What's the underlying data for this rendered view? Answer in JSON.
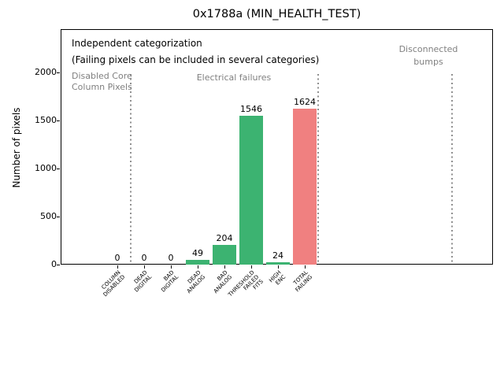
{
  "chart_data": {
    "type": "bar",
    "title": "0x1788a (MIN_HEALTH_TEST)",
    "xlabel": "",
    "ylabel": "Number of pixels",
    "categories": [
      [
        "COLUMN",
        "DISABLED"
      ],
      [
        "DEAD",
        "DIGITAL"
      ],
      [
        "BAD",
        "DIGITAL"
      ],
      [
        "DEAD",
        "ANALOG"
      ],
      [
        "BAD",
        "ANALOG"
      ],
      [
        "THRESHOLD",
        "FAILED",
        "FITS"
      ],
      [
        "HIGH",
        "ENC"
      ],
      [
        "TOTAL",
        "FAILING"
      ]
    ],
    "values": [
      0,
      0,
      0,
      49,
      204,
      1546,
      24,
      1624
    ],
    "bar_colors": [
      "#3cb371",
      "#3cb371",
      "#3cb371",
      "#3cb371",
      "#3cb371",
      "#3cb371",
      "#3cb371",
      "#f08080"
    ],
    "yticks": [
      0,
      500,
      1000,
      1500,
      2000
    ],
    "ylim": [
      0,
      2450
    ],
    "grid": false,
    "legend": null,
    "annotations": {
      "note_line1": "Independent categorization",
      "note_line2": "(Failing pixels can be included in several categories)",
      "region_labels": [
        {
          "name": "disabled-core-column-pixels",
          "lines": [
            "Disabled Core",
            "Column Pixels"
          ]
        },
        {
          "name": "electrical-failures",
          "lines": [
            "Electrical failures"
          ]
        },
        {
          "name": "disconnected-bumps",
          "lines": [
            "Disconnected",
            "bumps"
          ]
        }
      ],
      "separator_positions_in_category_units": [
        0.5,
        7.5,
        12.5
      ]
    },
    "colors": {
      "bar_green": "#3cb371",
      "bar_red": "#f08080",
      "annotation_gray": "#808080",
      "separator_gray": "#8f8f8f",
      "axis_black": "#000000",
      "background": "#ffffff"
    }
  }
}
